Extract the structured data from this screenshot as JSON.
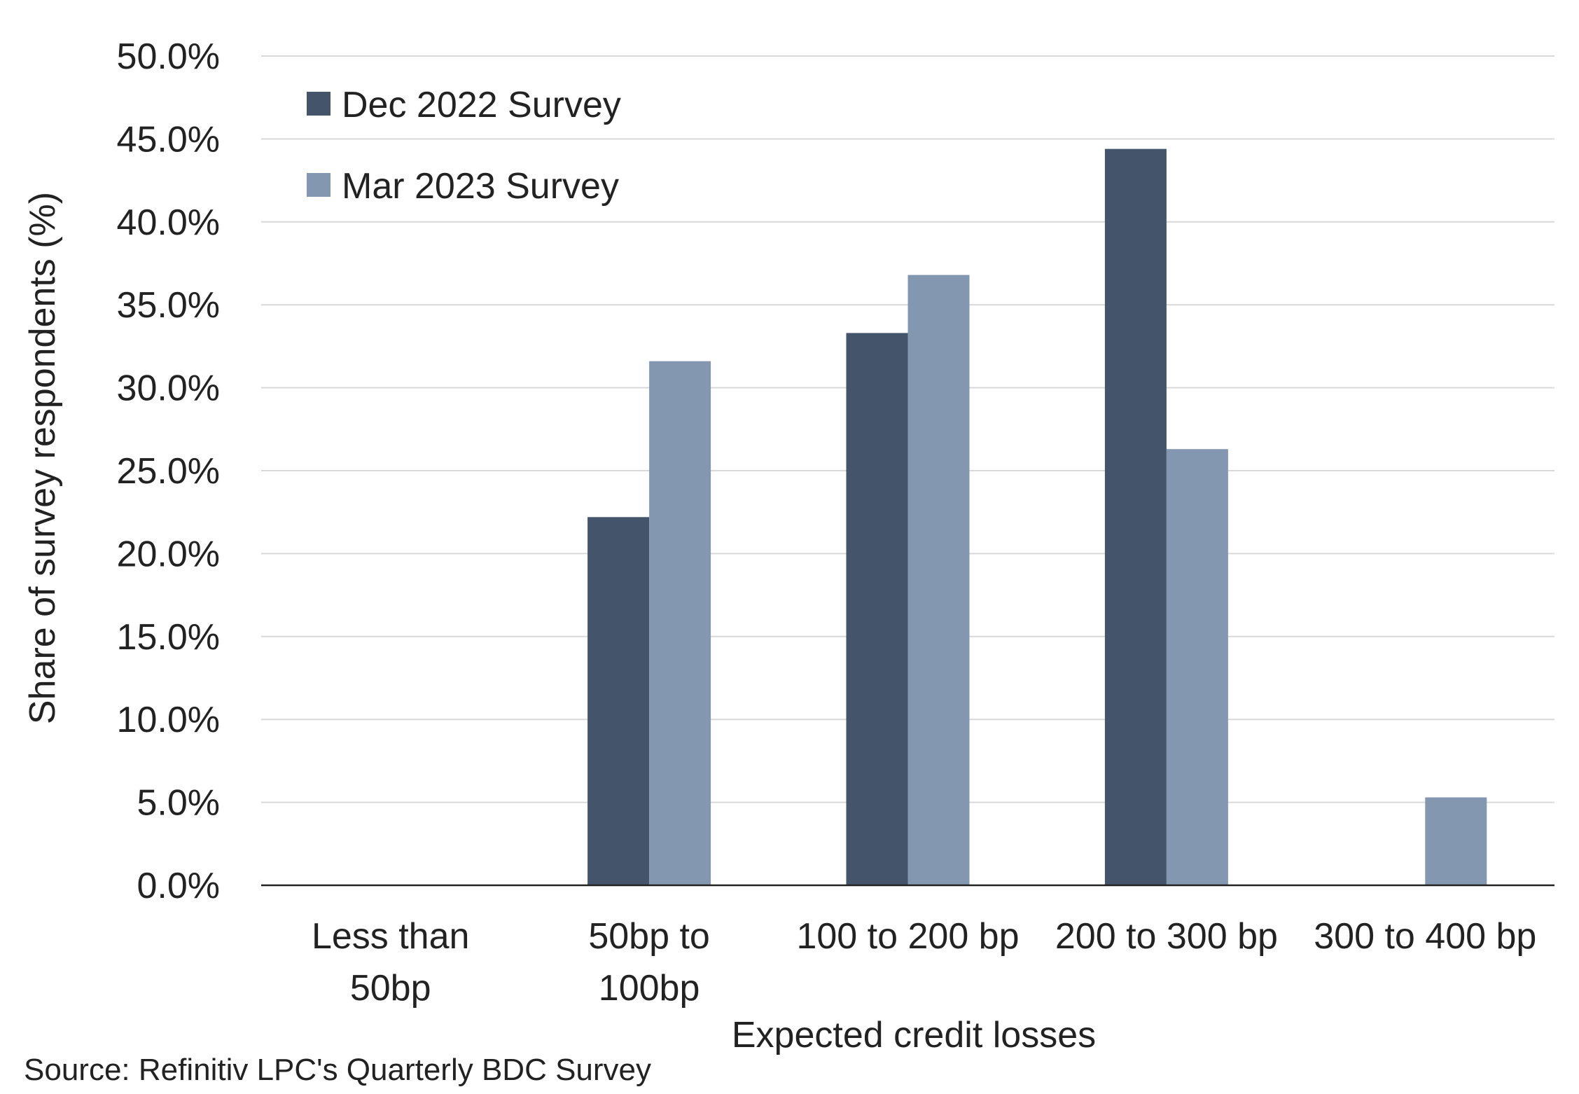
{
  "chart_data": {
    "type": "bar",
    "categories": [
      [
        "Less than",
        "50bp"
      ],
      [
        "50bp to",
        "100bp"
      ],
      [
        "100 to 200 bp"
      ],
      [
        "200 to 300 bp"
      ],
      [
        "300 to 400 bp"
      ]
    ],
    "series": [
      {
        "name": "Dec 2022 Survey",
        "color": "#44546a",
        "values": [
          0,
          22.2,
          33.3,
          44.4,
          0
        ]
      },
      {
        "name": "Mar 2023 Survey",
        "color": "#8497b0",
        "values": [
          0,
          31.6,
          36.8,
          26.3,
          5.3
        ]
      }
    ],
    "yticks": [
      "0.0%",
      "5.0%",
      "10.0%",
      "15.0%",
      "20.0%",
      "25.0%",
      "30.0%",
      "35.0%",
      "40.0%",
      "45.0%",
      "50.0%"
    ],
    "ylim": [
      0,
      50
    ],
    "xlabel": "Expected credit losses",
    "ylabel": "Share of survey respondents (%)",
    "title": "",
    "grid": true,
    "legend_position": "top-left",
    "gridline_color": "#d9d9d9",
    "axis_color": "#222222"
  },
  "source": "Source: Refinitiv LPC's Quarterly BDC Survey"
}
